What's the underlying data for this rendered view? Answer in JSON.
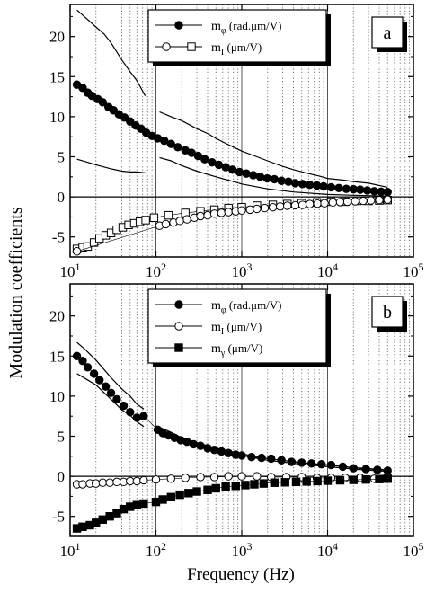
{
  "figure": {
    "ylabel": "Modulation coefficients",
    "xlabel": "Frequency (Hz)"
  },
  "chart_data": [
    {
      "type": "scatter",
      "panel_label": "a",
      "xscale": "log",
      "xlim": [
        10,
        100000
      ],
      "ylim": [
        -7.5,
        24
      ],
      "x_ticks": [
        {
          "v": 10,
          "base": "10",
          "exp": "1"
        },
        {
          "v": 100,
          "base": "10",
          "exp": "2"
        },
        {
          "v": 1000,
          "base": "10",
          "exp": "3"
        },
        {
          "v": 10000,
          "base": "10",
          "exp": "4"
        },
        {
          "v": 100000,
          "base": "10",
          "exp": "5"
        }
      ],
      "y_ticks": [
        "-5",
        "0",
        "5",
        "10",
        "15",
        "20"
      ],
      "grid": "dotted vertical lines at every minor decade step, solid at decades",
      "legend": {
        "placement": "top-center",
        "entries": [
          {
            "label": "m",
            "sub": "φ",
            "unit": " (rad.μm/V)",
            "marker": "filled-circle"
          },
          {
            "label": "m",
            "sub": "I",
            "unit": " (μm/V)",
            "marker": "open-circle+open-square"
          }
        ]
      },
      "series": [
        {
          "name": "mφ",
          "marker": "filled-circle",
          "x": [
            12,
            14,
            16,
            18,
            21,
            24,
            28,
            32,
            37,
            43,
            50,
            58,
            67,
            77,
            90,
            105,
            125,
            150,
            180,
            220,
            260,
            310,
            370,
            450,
            540,
            650,
            780,
            940,
            1130,
            1360,
            1640,
            1980,
            2400,
            2900,
            3500,
            4200,
            5100,
            6200,
            7500,
            9000,
            11000,
            13500,
            16500,
            20000,
            24000,
            29000,
            35000,
            42000,
            50000
          ],
          "y": [
            14.0,
            13.6,
            13.0,
            12.6,
            12.2,
            11.8,
            11.2,
            10.8,
            10.3,
            9.9,
            9.4,
            8.9,
            8.5,
            8.0,
            7.6,
            7.3,
            7.0,
            6.6,
            6.2,
            5.8,
            5.5,
            5.1,
            4.7,
            4.3,
            4.0,
            3.7,
            3.4,
            3.1,
            2.9,
            2.7,
            2.5,
            2.3,
            2.2,
            2.0,
            1.9,
            1.7,
            1.6,
            1.5,
            1.4,
            1.3,
            1.2,
            1.1,
            1.0,
            0.95,
            0.9,
            0.8,
            0.7,
            0.65,
            0.6
          ]
        },
        {
          "name": "mI (open squares)",
          "marker": "open-square",
          "x": [
            12,
            14,
            16,
            19,
            22,
            26,
            30,
            35,
            41,
            48,
            56,
            65,
            76,
            95,
            140,
            220,
            330,
            480,
            700,
            1000,
            1500,
            2300,
            3400,
            5000,
            7500,
            11000,
            16000,
            22000,
            30000,
            40000,
            50000
          ],
          "y": [
            -6.5,
            -6.3,
            -6.2,
            -5.7,
            -5.2,
            -4.8,
            -4.5,
            -4.1,
            -3.8,
            -3.5,
            -3.3,
            -3.1,
            -2.9,
            -2.6,
            -2.3,
            -2.0,
            -1.8,
            -1.6,
            -1.4,
            -1.3,
            -1.1,
            -1.0,
            -0.9,
            -0.8,
            -0.7,
            -0.6,
            -0.6,
            -0.5,
            -0.5,
            -0.45,
            -0.4
          ]
        },
        {
          "name": "mI (open circles)",
          "marker": "open-circle",
          "x": [
            12,
            110,
            130,
            160,
            190,
            230,
            280,
            330,
            400,
            480,
            580,
            700,
            850,
            1000,
            1250,
            1500,
            1850,
            2300,
            2800,
            3400,
            4200,
            5100,
            6200,
            7600,
            9200,
            11500,
            14000,
            17000,
            21000,
            26000,
            32000,
            40000,
            50000
          ],
          "y": [
            -6.8,
            -3.6,
            -3.4,
            -3.2,
            -3.0,
            -2.8,
            -2.6,
            -2.4,
            -2.3,
            -2.1,
            -2.0,
            -1.9,
            -1.8,
            -1.7,
            -1.6,
            -1.5,
            -1.4,
            -1.3,
            -1.2,
            -1.1,
            -1.05,
            -1.0,
            -0.9,
            -0.85,
            -0.8,
            -0.7,
            -0.65,
            -0.6,
            -0.55,
            -0.5,
            -0.45,
            -0.4,
            -0.35
          ]
        }
      ],
      "curves": [
        {
          "name": "upper bound low-f",
          "x": [
            12,
            15,
            20,
            25,
            30,
            40,
            50,
            60,
            75
          ],
          "y": [
            23.3,
            22.4,
            21.2,
            20.3,
            19.2,
            17.1,
            15.6,
            14.5,
            12.6
          ]
        },
        {
          "name": "upper bound high-f",
          "x": [
            110,
            150,
            200,
            300,
            400,
            500,
            700,
            1000,
            1500,
            2000,
            3000,
            4000,
            6000,
            8000,
            10000,
            15000,
            20000,
            30000,
            50000
          ],
          "y": [
            10.6,
            10.0,
            9.5,
            8.5,
            7.9,
            7.3,
            6.5,
            5.7,
            5.0,
            4.5,
            3.8,
            3.4,
            2.9,
            2.6,
            2.3,
            2.1,
            1.9,
            1.7,
            1.2
          ]
        },
        {
          "name": "lower bound low-f",
          "x": [
            12,
            15,
            20,
            30,
            40,
            50,
            60,
            75
          ],
          "y": [
            4.7,
            4.4,
            4.0,
            3.5,
            3.2,
            3.1,
            3.1,
            3.0
          ]
        },
        {
          "name": "lower bound high-f",
          "x": [
            110,
            150,
            200,
            300,
            500,
            800,
            1000,
            2000,
            4000,
            10000,
            20000,
            50000
          ],
          "y": [
            4.9,
            4.5,
            3.9,
            3.2,
            2.5,
            1.9,
            1.6,
            1.0,
            0.6,
            0.3,
            0.2,
            0.1
          ]
        }
      ]
    },
    {
      "type": "scatter",
      "panel_label": "b",
      "xscale": "log",
      "xlim": [
        10,
        100000
      ],
      "ylim": [
        -7.5,
        24
      ],
      "x_ticks": [
        {
          "v": 10,
          "base": "10",
          "exp": "1"
        },
        {
          "v": 100,
          "base": "10",
          "exp": "2"
        },
        {
          "v": 1000,
          "base": "10",
          "exp": "3"
        },
        {
          "v": 10000,
          "base": "10",
          "exp": "4"
        },
        {
          "v": 100000,
          "base": "10",
          "exp": "5"
        }
      ],
      "y_ticks": [
        "-5",
        "0",
        "5",
        "10",
        "15",
        "20"
      ],
      "grid": "dotted vertical lines at every minor decade step, solid at decades",
      "legend": {
        "placement": "top-center",
        "entries": [
          {
            "label": "m",
            "sub": "φ",
            "unit": " (rad.μm/V)",
            "marker": "filled-circle"
          },
          {
            "label": "m",
            "sub": "I",
            "unit": " (μm/V)",
            "marker": "open-circle"
          },
          {
            "label": "m",
            "sub": "γ",
            "unit": " (μm/V)",
            "marker": "filled-square"
          }
        ]
      },
      "series": [
        {
          "name": "mφ",
          "marker": "filled-circle",
          "x": [
            12,
            14,
            16,
            19,
            22,
            26,
            30,
            35,
            42,
            50,
            60,
            72,
            105,
            120,
            140,
            165,
            195,
            230,
            275,
            330,
            400,
            480,
            580,
            700,
            850,
            1000,
            1300,
            1700,
            2200,
            2900,
            3800,
            5000,
            6500,
            8500,
            11000,
            15000,
            20000,
            28000,
            38000,
            50000
          ],
          "y": [
            15.0,
            14.4,
            13.6,
            12.8,
            12.0,
            11.2,
            10.4,
            9.6,
            8.8,
            8.0,
            7.3,
            7.5,
            5.8,
            5.4,
            5.1,
            4.8,
            4.5,
            4.3,
            4.0,
            3.8,
            3.5,
            3.3,
            3.1,
            2.9,
            2.7,
            2.6,
            2.4,
            2.3,
            2.2,
            2.0,
            1.8,
            1.7,
            1.6,
            1.5,
            1.4,
            1.2,
            1.0,
            0.9,
            0.8,
            0.7
          ]
        },
        {
          "name": "mI",
          "marker": "open-circle",
          "x": [
            12,
            14,
            17,
            20,
            24,
            29,
            35,
            42,
            50,
            60,
            72,
            100,
            150,
            220,
            330,
            480,
            700,
            1000,
            1500,
            2200,
            3300,
            5000,
            7500,
            11000,
            16000,
            24000,
            35000,
            50000
          ],
          "y": [
            -1.0,
            -1.0,
            -0.9,
            -0.9,
            -0.8,
            -0.8,
            -0.7,
            -0.7,
            -0.6,
            -0.6,
            -0.5,
            -0.4,
            -0.3,
            -0.2,
            -0.1,
            -0.1,
            0.0,
            0.0,
            0.0,
            -0.1,
            -0.1,
            -0.1,
            -0.2,
            -0.2,
            -0.2,
            -0.2,
            -0.3,
            -0.3
          ]
        },
        {
          "name": "mγ",
          "marker": "filled-square",
          "x": [
            12,
            14,
            17,
            20,
            24,
            29,
            35,
            42,
            50,
            60,
            72,
            100,
            120,
            150,
            190,
            240,
            300,
            400,
            500,
            650,
            850,
            1100,
            1400,
            1800,
            2400,
            3200,
            4300,
            5700,
            7600,
            10000,
            14000,
            20000,
            28000,
            40000,
            50000
          ],
          "y": [
            -6.5,
            -6.3,
            -6.1,
            -5.8,
            -5.4,
            -5.0,
            -4.6,
            -4.1,
            -3.8,
            -3.6,
            -3.4,
            -3.2,
            -2.9,
            -2.6,
            -2.3,
            -2.1,
            -1.9,
            -1.7,
            -1.5,
            -1.3,
            -1.2,
            -1.1,
            -1.0,
            -0.9,
            -0.8,
            -0.75,
            -0.7,
            -0.65,
            -0.6,
            -0.55,
            -0.5,
            -0.45,
            -0.4,
            -0.35,
            -0.3
          ]
        }
      ],
      "curves": [
        {
          "name": "upper bound low-f",
          "x": [
            12,
            15,
            20,
            30,
            40,
            50,
            60,
            72
          ],
          "y": [
            16.7,
            15.8,
            14.5,
            12.3,
            10.9,
            10.0,
            9.0,
            8.4
          ]
        },
        {
          "name": "lower bound low-f",
          "x": [
            12,
            15,
            20,
            30,
            40,
            50,
            60,
            72
          ],
          "y": [
            12.8,
            12.2,
            11.4,
            9.6,
            8.3,
            7.6,
            6.8,
            6.2
          ]
        },
        {
          "name": "upper bound high-f",
          "x": [
            100,
            150,
            200,
            300,
            500,
            1000,
            2000,
            5000,
            10000,
            20000,
            50000
          ],
          "y": [
            6.3,
            5.5,
            4.8,
            4.2,
            3.5,
            2.8,
            2.2,
            1.7,
            1.4,
            1.1,
            0.8
          ]
        },
        {
          "name": "lower bound high-f",
          "x": [
            100,
            150,
            200,
            300,
            500,
            1000,
            2000,
            5000,
            10000,
            20000,
            50000
          ],
          "y": [
            5.6,
            4.9,
            4.4,
            3.8,
            3.2,
            2.6,
            2.0,
            1.5,
            1.2,
            0.9,
            0.6
          ]
        }
      ]
    }
  ]
}
